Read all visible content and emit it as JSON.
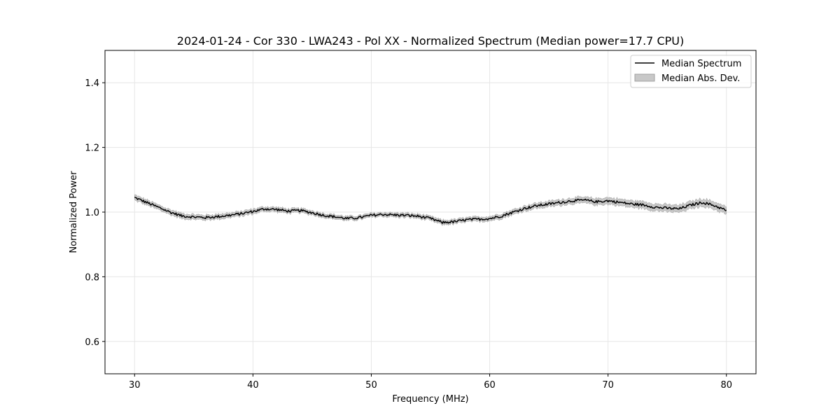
{
  "chart_data": {
    "type": "line",
    "title": "2024-01-24 - Cor 330 - LWA243 - Pol XX - Normalized Spectrum (Median power=17.7 CPU)",
    "xlabel": "Frequency (MHz)",
    "ylabel": "Normalized Power",
    "xlim": [
      27.5,
      82.5
    ],
    "ylim": [
      0.5,
      1.5
    ],
    "xticks": [
      30,
      40,
      50,
      60,
      70,
      80
    ],
    "yticks": [
      0.6,
      0.8,
      1.0,
      1.2,
      1.4
    ],
    "xtick_labels": [
      "30",
      "40",
      "50",
      "60",
      "70",
      "80"
    ],
    "ytick_labels": [
      "0.6",
      "0.8",
      "1.0",
      "1.2",
      "1.4"
    ],
    "grid": true,
    "legend_position": "top-right",
    "series": [
      {
        "name": "Median Spectrum",
        "kind": "line",
        "color": "#000000",
        "x": [
          30,
          31,
          32,
          33,
          34,
          35,
          36,
          37,
          38,
          39,
          40,
          41,
          42,
          43,
          44,
          45,
          46,
          47,
          48,
          49,
          50,
          51,
          52,
          53,
          54,
          55,
          56,
          57,
          58,
          59,
          60,
          61,
          62,
          63,
          64,
          65,
          66,
          67,
          68,
          69,
          70,
          71,
          72,
          73,
          74,
          75,
          76,
          77,
          78,
          79,
          80
        ],
        "values": [
          1.045,
          1.03,
          1.015,
          1.0,
          0.988,
          0.985,
          0.983,
          0.986,
          0.99,
          0.995,
          1.002,
          1.01,
          1.008,
          1.003,
          1.005,
          0.998,
          0.99,
          0.985,
          0.98,
          0.983,
          0.99,
          0.993,
          0.991,
          0.99,
          0.987,
          0.98,
          0.968,
          0.97,
          0.976,
          0.978,
          0.98,
          0.988,
          1.0,
          1.012,
          1.02,
          1.025,
          1.03,
          1.035,
          1.037,
          1.032,
          1.035,
          1.03,
          1.025,
          1.022,
          1.015,
          1.012,
          1.01,
          1.022,
          1.03,
          1.02,
          1.005
        ]
      },
      {
        "name": "Median Abs. Dev.",
        "kind": "band",
        "color": "#c8c8c8",
        "x": [
          30,
          40,
          50,
          60,
          70,
          80
        ],
        "halfwidth": [
          0.008,
          0.007,
          0.006,
          0.007,
          0.01,
          0.012
        ]
      }
    ]
  }
}
